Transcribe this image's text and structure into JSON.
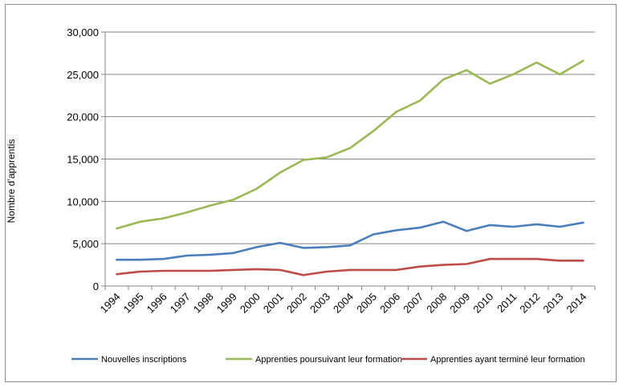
{
  "chart_data": {
    "type": "line",
    "title": "",
    "xlabel": "",
    "ylabel": "Nombre d’apprentis",
    "categories": [
      "1994",
      "1995",
      "1996",
      "1997",
      "1998",
      "1999",
      "2000",
      "2001",
      "2002",
      "2003",
      "2004",
      "2005",
      "2006",
      "2007",
      "2008",
      "2009",
      "2010",
      "2011",
      "2012",
      "2013",
      "2014"
    ],
    "ylim": [
      0,
      30000
    ],
    "yticks": [
      0,
      5000,
      10000,
      15000,
      20000,
      25000,
      30000
    ],
    "ytick_labels": [
      "0",
      "5,000",
      "10,000",
      "15,000",
      "20,000",
      "25,000",
      "30,000"
    ],
    "grid": true,
    "legend_position": "bottom",
    "series": [
      {
        "name": "Nouvelles inscriptions",
        "color": "#4a7ebb",
        "values": [
          3100,
          3100,
          3200,
          3600,
          3700,
          3900,
          4600,
          5100,
          4500,
          4600,
          4800,
          6100,
          6600,
          6900,
          7600,
          6500,
          7200,
          7000,
          7300,
          7000,
          7500
        ]
      },
      {
        "name": "Apprenties poursuivant leur formation",
        "color": "#98b954",
        "values": [
          6800,
          7600,
          8000,
          8700,
          9500,
          10200,
          11500,
          13400,
          14900,
          15200,
          16300,
          18300,
          20600,
          21900,
          24400,
          25500,
          23900,
          25000,
          26400,
          25000,
          26600
        ]
      },
      {
        "name": "Apprenties ayant terminé leur formation",
        "color": "#be4b48",
        "values": [
          1400,
          1700,
          1800,
          1800,
          1800,
          1900,
          2000,
          1900,
          1300,
          1700,
          1900,
          1900,
          1900,
          2300,
          2500,
          2600,
          3200,
          3200,
          3200,
          3000,
          3000
        ]
      }
    ]
  }
}
